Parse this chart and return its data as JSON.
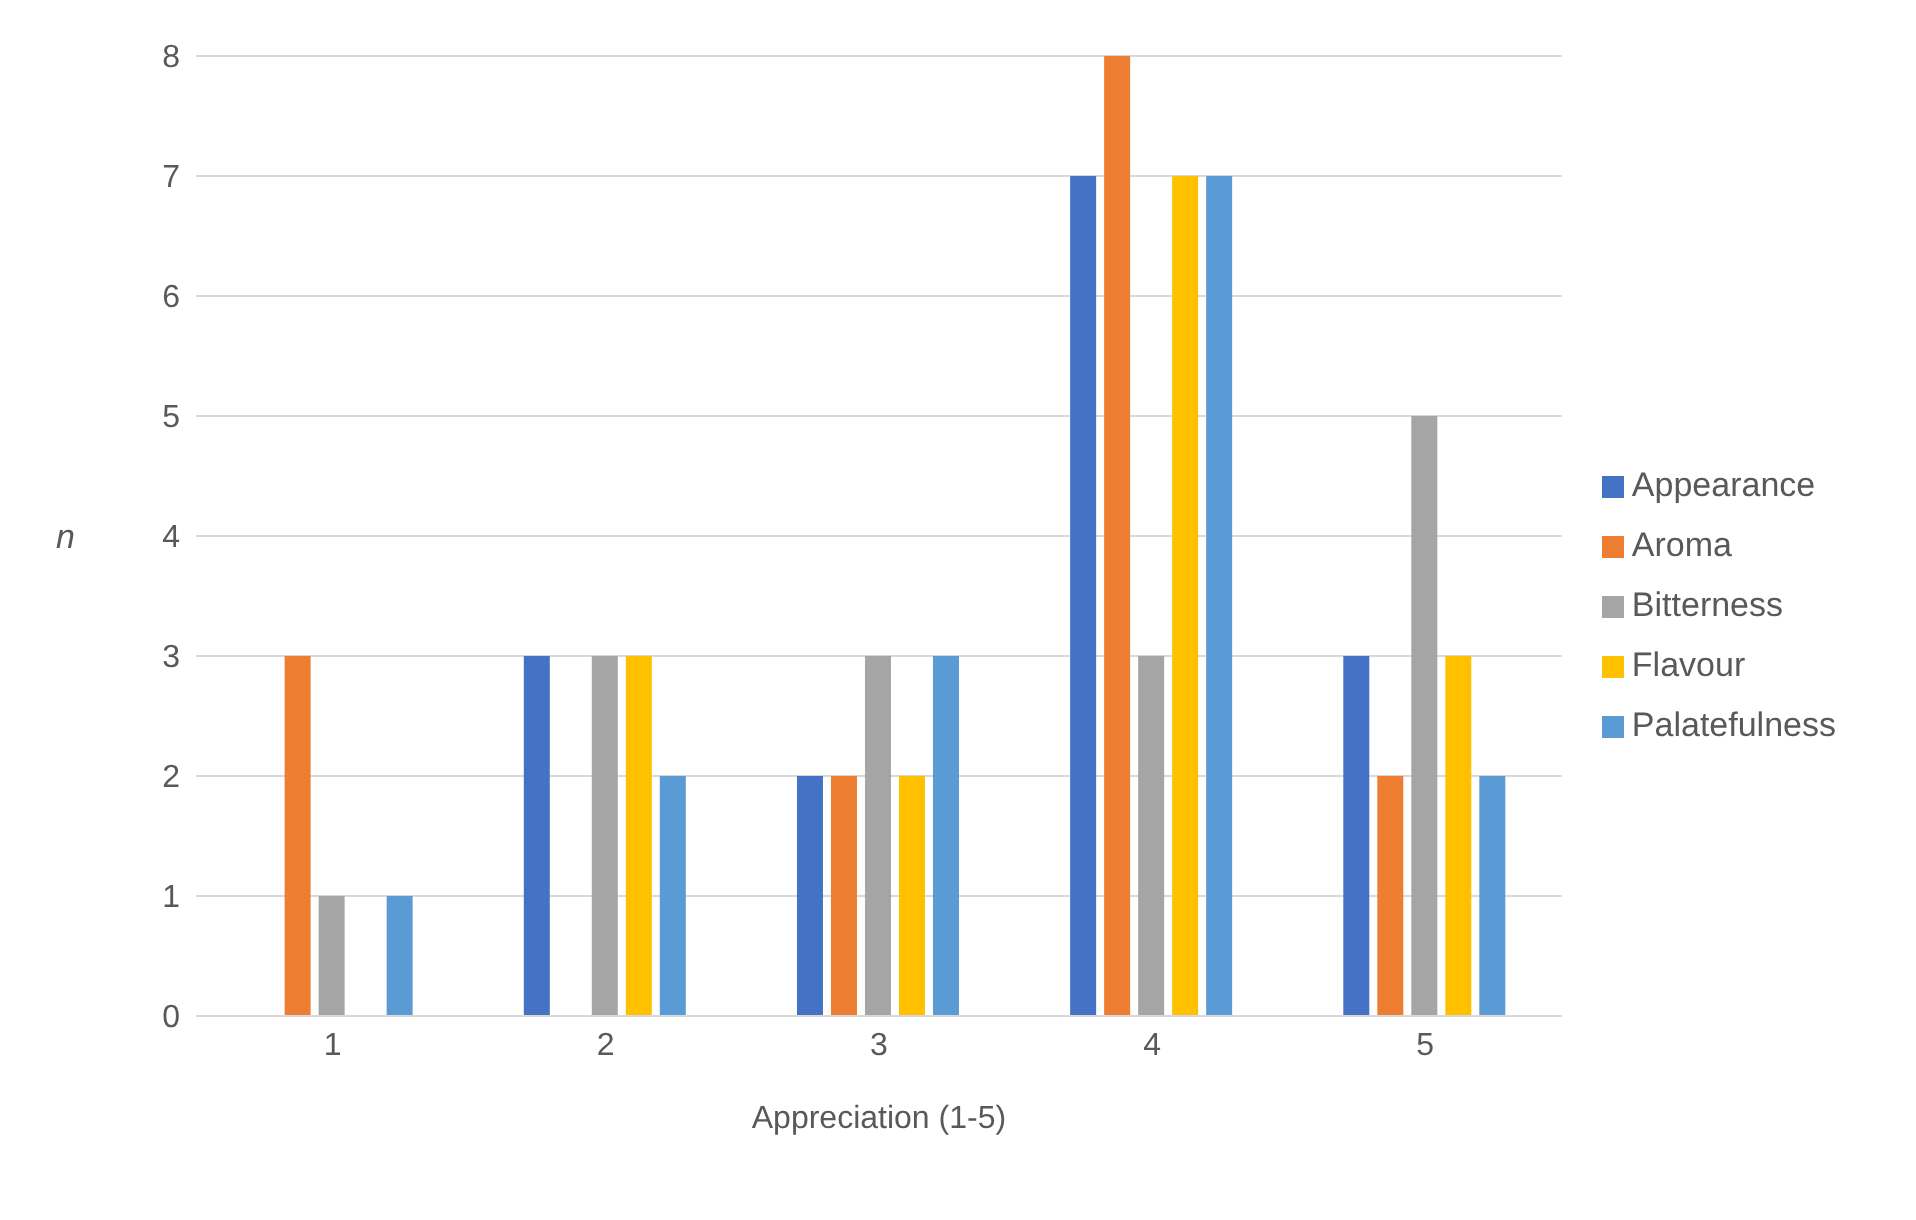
{
  "chart_data": {
    "type": "bar",
    "xlabel": "Appreciation (1-5)",
    "ylabel": "n",
    "categories": [
      "1",
      "2",
      "3",
      "4",
      "5"
    ],
    "series": [
      {
        "name": "Appearance",
        "color": "#4472c4",
        "values": [
          0,
          3,
          2,
          7,
          3
        ]
      },
      {
        "name": "Aroma",
        "color": "#ed7d31",
        "values": [
          3,
          0,
          2,
          8,
          2
        ]
      },
      {
        "name": "Bitterness",
        "color": "#a5a5a5",
        "values": [
          1,
          3,
          3,
          3,
          5
        ]
      },
      {
        "name": "Flavour",
        "color": "#ffc000",
        "values": [
          0,
          3,
          2,
          7,
          3
        ]
      },
      {
        "name": "Palatefulness",
        "color": "#5b9bd5",
        "values": [
          1,
          2,
          3,
          7,
          2
        ]
      }
    ],
    "ylim": [
      0,
      8
    ],
    "yticks": [
      0,
      1,
      2,
      3,
      4,
      5,
      6,
      7,
      8
    ],
    "grid": "y",
    "legend": "right"
  }
}
